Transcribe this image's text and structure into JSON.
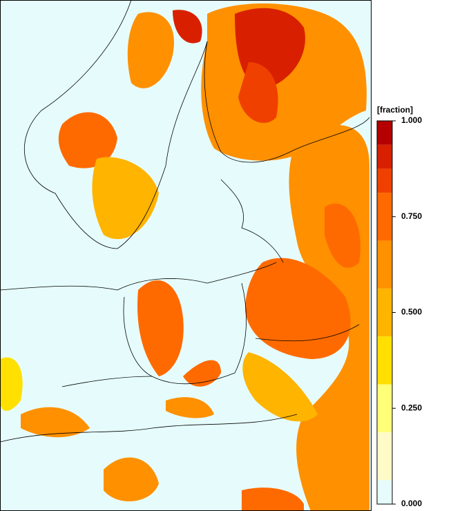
{
  "colorbar": {
    "label": "[fraction]",
    "levels": [
      0,
      0.0625,
      0.1875,
      0.3125,
      0.4375,
      0.5625,
      0.6875,
      0.8125,
      0.875,
      0.9375,
      1
    ],
    "colors": [
      "#e6fcfc",
      "#fffbc8",
      "#ffff78",
      "#ffe000",
      "#ffb400",
      "#ff9000",
      "#ff6a00",
      "#f04000",
      "#d82000",
      "#b40000"
    ],
    "ticks": [
      {
        "value": 0,
        "label": "0.000"
      },
      {
        "value": 0.25,
        "label": "0.250"
      },
      {
        "value": 0.5,
        "label": "0.500"
      },
      {
        "value": 0.75,
        "label": "0.750"
      },
      {
        "value": 1,
        "label": "1.000"
      }
    ],
    "lim": [
      0,
      1
    ]
  }
}
